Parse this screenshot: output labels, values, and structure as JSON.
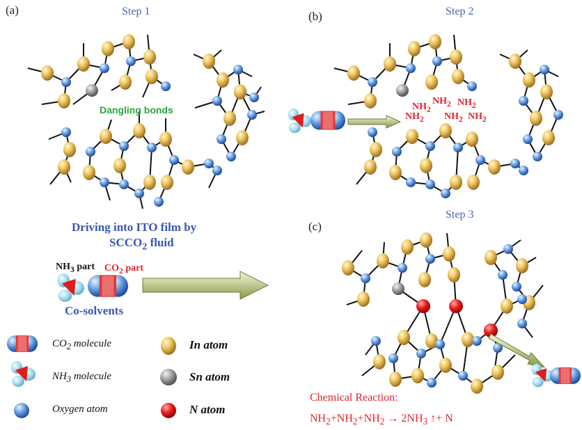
{
  "panels": {
    "a": "(a)",
    "b": "(b)",
    "c": "(c)"
  },
  "steps": {
    "s1": "Step 1",
    "s2": "Step 2",
    "s3": "Step 3"
  },
  "dangling": "Dangling bonds",
  "nh2": {
    "base": "NH",
    "sub": "2"
  },
  "driving": {
    "line1": "Driving into ITO film by",
    "line2_pre": "SCCO",
    "line2_sub": "2",
    "line2_post": " fluid"
  },
  "cosolvent": {
    "nh3_pre": "NH",
    "nh3_sub": "3",
    "nh3_post": " part",
    "co2_pre": "CO",
    "co2_sub": "2",
    "co2_post": " part",
    "label": "Co-solvents"
  },
  "legend": {
    "co2_pre": "CO",
    "co2_sub": "2",
    "co2_post": " molecule",
    "nh3_pre": "NH",
    "nh3_sub": "3",
    "nh3_post": " molecule",
    "oxygen": "Oxygen atom",
    "in": "In atom",
    "sn": "Sn  atom",
    "n": "N  atom"
  },
  "reaction": {
    "title": "Chemical Reaction:",
    "a": "NH",
    "a_sub": "2",
    "b": "+NH",
    "b_sub": "2",
    "c": "+NH",
    "c_sub": "2",
    "d": " → 2NH",
    "d_sub": "3",
    "e": " ↑+ N"
  },
  "colors": {
    "in": "#e8b84a",
    "oxygen": "#4a7fd0",
    "sn": "#8a8a8a",
    "n": "#e01818",
    "text_blue": "#3a56b0",
    "green": "#2aa53a",
    "red": "#e0242c"
  }
}
